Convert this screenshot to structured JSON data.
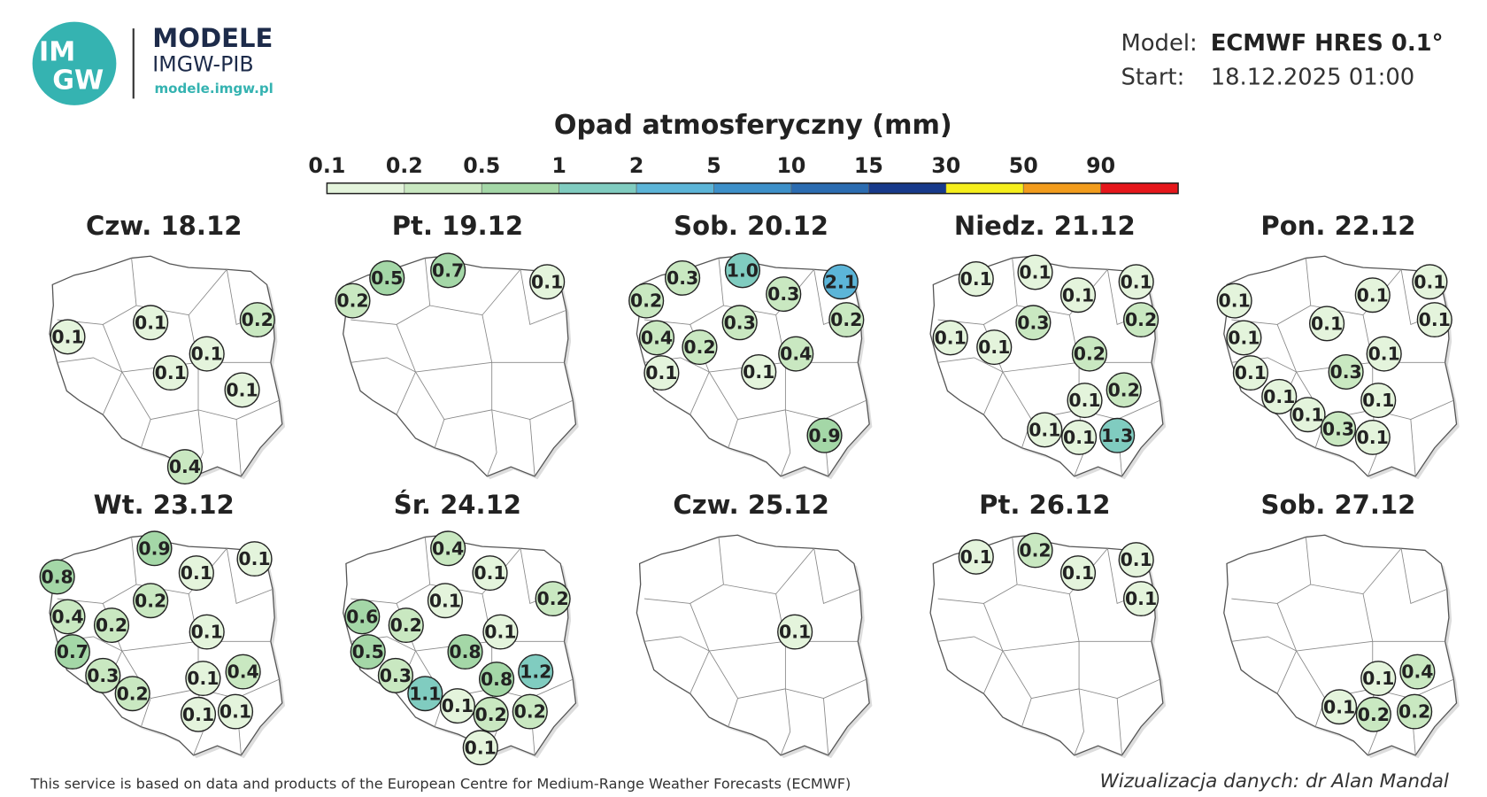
{
  "header": {
    "logo_text": [
      "IM",
      "GW"
    ],
    "brand": "MODELE",
    "org": "IMGW-PIB",
    "url": "modele.imgw.pl",
    "model_label": "Model:",
    "model": "ECMWF HRES 0.1°",
    "start_label": "Start:",
    "start": "18.12.2025 01:00"
  },
  "legend": {
    "title": "Opad atmosferyczny (mm)",
    "ticks": [
      "0.1",
      "0.2",
      "0.5",
      "1",
      "2",
      "5",
      "10",
      "15",
      "30",
      "50",
      "90"
    ],
    "colors": [
      "#e4f4dc",
      "#c9e8c1",
      "#a4d7a7",
      "#80ccc0",
      "#5cb5d8",
      "#3d90c9",
      "#2b6cb1",
      "#173a8b",
      "#f6ef1c",
      "#f29c1c",
      "#e6161b"
    ]
  },
  "maps": [
    {
      "day": "Czw. 18.12",
      "values": [
        "0.1",
        "0.1",
        "0.2",
        "0.1",
        "0.1",
        "0.1",
        "0.4"
      ]
    },
    {
      "day": "Pt. 19.12",
      "values": [
        "0.2",
        "0.5",
        "0.7",
        "0.1"
      ]
    },
    {
      "day": "Sob. 20.12",
      "values": [
        "0.3",
        "1.0",
        "0.3",
        "2.1",
        "0.2",
        "0.3",
        "0.2",
        "0.4",
        "0.2",
        "0.4",
        "0.1",
        "0.1",
        "0.9"
      ]
    },
    {
      "day": "Niedz. 21.12",
      "values": [
        "0.1",
        "0.1",
        "0.1",
        "0.1",
        "0.3",
        "0.2",
        "0.1",
        "0.1",
        "0.2",
        "0.1",
        "0.2",
        "0.1",
        "0.1",
        "1.3"
      ]
    },
    {
      "day": "Pon. 22.12",
      "values": [
        "0.1",
        "0.1",
        "0.1",
        "0.1",
        "0.1",
        "0.1",
        "0.1",
        "0.3",
        "0.1",
        "0.1",
        "0.1",
        "0.1",
        "0.3",
        "0.1"
      ]
    },
    {
      "day": "Wt. 23.12",
      "values": [
        "0.9",
        "0.1",
        "0.8",
        "0.1",
        "0.2",
        "0.4",
        "0.2",
        "0.1",
        "0.7",
        "0.3",
        "0.1",
        "0.4",
        "0.2",
        "0.1",
        "0.1"
      ]
    },
    {
      "day": "Śr. 24.12",
      "values": [
        "0.4",
        "0.1",
        "0.2",
        "0.1",
        "0.6",
        "0.2",
        "0.1",
        "0.5",
        "0.8",
        "0.3",
        "0.8",
        "1.2",
        "1.1",
        "0.1",
        "0.2",
        "0.2",
        "0.1"
      ]
    },
    {
      "day": "Czw. 25.12",
      "values": [
        "0.1"
      ]
    },
    {
      "day": "Pt. 26.12",
      "values": [
        "0.1",
        "0.2",
        "0.1",
        "0.1",
        "0.1"
      ]
    },
    {
      "day": "Sob. 27.12",
      "values": [
        "0.1",
        "0.4",
        "0.1",
        "0.2",
        "0.2"
      ]
    }
  ],
  "footer": {
    "source": "This service is based on data and products of the European Centre for Medium-Range Weather Forecasts (ECMWF)",
    "credit": "Wizualizacja danych: dr Alan Mandal"
  }
}
